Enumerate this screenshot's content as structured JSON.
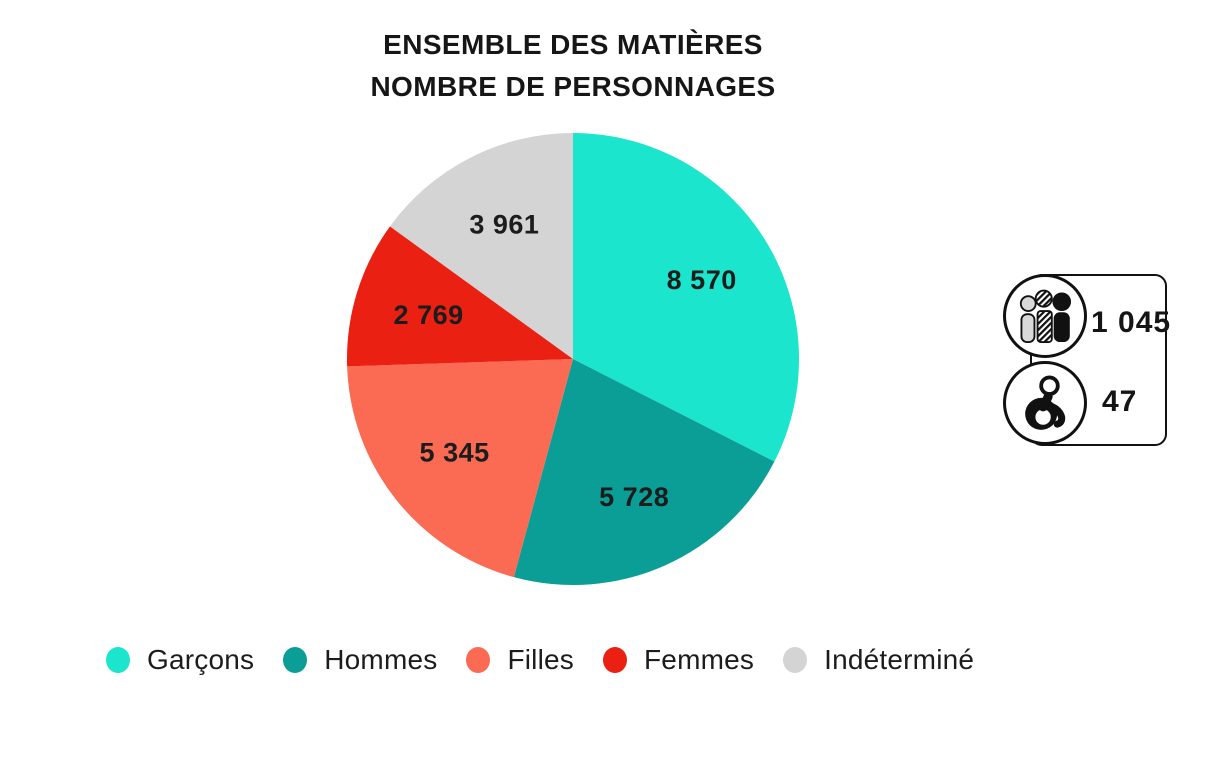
{
  "title": {
    "line1": "ENSEMBLE DES MATIÈRES",
    "line2": "NOMBRE DE PERSONNAGES"
  },
  "chart_data": {
    "type": "pie",
    "title": "ENSEMBLE DES MATIÈRES — NOMBRE DE PERSONNAGES",
    "start_angle": "top",
    "direction": "clockwise",
    "legend_position": "bottom",
    "label_color": "#1c1c1c",
    "categories": [
      "Garçons",
      "Hommes",
      "Filles",
      "Femmes",
      "Indéterminé"
    ],
    "values": [
      8570,
      5728,
      5345,
      2769,
      3961
    ],
    "slices": [
      {
        "label": "Garçons",
        "value": 8570,
        "display_value": "8 570",
        "color": "#1BE5CC"
      },
      {
        "label": "Hommes",
        "value": 5728,
        "display_value": "5 728",
        "color": "#0A9E96"
      },
      {
        "label": "Filles",
        "value": 5345,
        "display_value": "5 345",
        "color": "#FB6A52"
      },
      {
        "label": "Femmes",
        "value": 2769,
        "display_value": "2 769",
        "color": "#EA2112"
      },
      {
        "label": "Indéterminé",
        "value": 3961,
        "display_value": "3 961",
        "color": "#D4D4D4"
      }
    ]
  },
  "side_panel": {
    "items": [
      {
        "icon": "group-people-icon",
        "value": 1045,
        "display_value": "1 045"
      },
      {
        "icon": "wheelchair-icon",
        "value": 47,
        "display_value": "47"
      }
    ]
  }
}
